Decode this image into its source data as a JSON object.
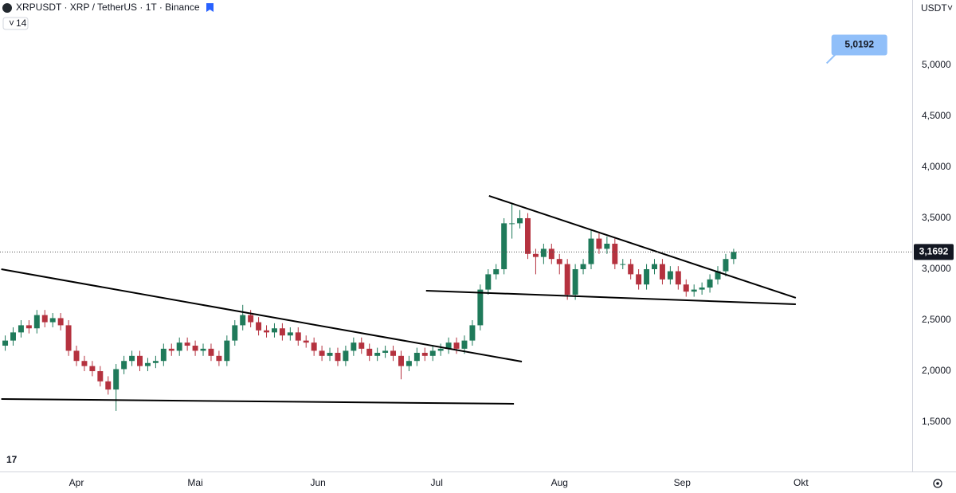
{
  "header": {
    "symbol": "XRPUSDT · XRP / TetherUS · 1T · Binance",
    "indicator": "14",
    "currency": "USDT"
  },
  "chart_data": {
    "type": "candlestick",
    "open": [
      2.25,
      2.3,
      2.38,
      2.45,
      2.42,
      2.55,
      2.48,
      2.52,
      2.45,
      2.2,
      2.1,
      2.05,
      2.0,
      1.9,
      1.82,
      2.02,
      2.1,
      2.15,
      2.05,
      2.08,
      2.1,
      2.22,
      2.2,
      2.28,
      2.25,
      2.2,
      2.22,
      2.15,
      2.1,
      2.3,
      2.45,
      2.55,
      2.48,
      2.4,
      2.38,
      2.42,
      2.35,
      2.38,
      2.3,
      2.28,
      2.2,
      2.15,
      2.18,
      2.1,
      2.2,
      2.28,
      2.22,
      2.15,
      2.18,
      2.2,
      2.15,
      2.05,
      2.1,
      2.18,
      2.15,
      2.2,
      2.22,
      2.28,
      2.22,
      2.3,
      2.45,
      2.8,
      2.95,
      3.0,
      3.45,
      3.45,
      3.5,
      3.15,
      3.12,
      3.2,
      3.1,
      3.05,
      2.75,
      3.0,
      3.05,
      3.3,
      3.2,
      3.25,
      3.05,
      3.05,
      2.95,
      2.85,
      3.0,
      3.05,
      2.9,
      2.98,
      2.85,
      2.78,
      2.8,
      2.82,
      2.9,
      2.98,
      3.1
    ],
    "high": [
      2.35,
      2.43,
      2.5,
      2.5,
      2.6,
      2.6,
      2.57,
      2.57,
      2.5,
      2.25,
      2.15,
      2.1,
      2.05,
      1.95,
      2.07,
      2.15,
      2.2,
      2.2,
      2.13,
      2.15,
      2.27,
      2.27,
      2.33,
      2.33,
      2.3,
      2.27,
      2.27,
      2.2,
      2.35,
      2.5,
      2.65,
      2.6,
      2.53,
      2.45,
      2.47,
      2.47,
      2.43,
      2.43,
      2.35,
      2.33,
      2.25,
      2.23,
      2.23,
      2.25,
      2.33,
      2.33,
      2.27,
      2.23,
      2.25,
      2.25,
      2.2,
      2.15,
      2.23,
      2.23,
      2.25,
      2.27,
      2.33,
      2.33,
      2.35,
      2.5,
      2.85,
      3.0,
      3.05,
      3.5,
      3.65,
      3.58,
      3.55,
      3.2,
      3.25,
      3.25,
      3.15,
      3.1,
      3.05,
      3.1,
      3.38,
      3.35,
      3.32,
      3.3,
      3.1,
      3.1,
      3.0,
      3.05,
      3.1,
      3.1,
      3.03,
      3.03,
      2.9,
      2.85,
      2.87,
      2.95,
      3.03,
      3.15,
      3.2
    ],
    "low": [
      2.2,
      2.25,
      2.33,
      2.37,
      2.37,
      2.43,
      2.43,
      2.4,
      2.15,
      2.05,
      2.0,
      1.95,
      1.85,
      1.77,
      1.61,
      1.97,
      2.05,
      2.0,
      2.0,
      2.03,
      2.05,
      2.15,
      2.15,
      2.2,
      2.15,
      2.15,
      2.1,
      2.05,
      2.05,
      2.25,
      2.4,
      2.43,
      2.35,
      2.33,
      2.33,
      2.3,
      2.3,
      2.25,
      2.23,
      2.15,
      2.1,
      2.1,
      2.05,
      2.05,
      2.15,
      2.17,
      2.1,
      2.1,
      2.13,
      2.1,
      1.92,
      2.0,
      2.05,
      2.1,
      2.1,
      2.15,
      2.17,
      2.17,
      2.17,
      2.25,
      2.4,
      2.75,
      2.9,
      2.95,
      3.3,
      3.4,
      3.1,
      2.95,
      3.05,
      3.05,
      2.95,
      2.7,
      2.7,
      2.95,
      3.0,
      3.15,
      3.15,
      3.0,
      3.0,
      2.9,
      2.8,
      2.8,
      2.95,
      2.85,
      2.85,
      2.8,
      2.73,
      2.73,
      2.75,
      2.77,
      2.85,
      2.93,
      3.05
    ],
    "close": [
      2.3,
      2.38,
      2.45,
      2.42,
      2.55,
      2.48,
      2.52,
      2.45,
      2.2,
      2.1,
      2.05,
      2.0,
      1.9,
      1.82,
      2.02,
      2.1,
      2.15,
      2.05,
      2.08,
      2.1,
      2.22,
      2.2,
      2.28,
      2.25,
      2.2,
      2.22,
      2.15,
      2.1,
      2.3,
      2.45,
      2.55,
      2.48,
      2.4,
      2.38,
      2.42,
      2.35,
      2.38,
      2.3,
      2.28,
      2.2,
      2.15,
      2.18,
      2.1,
      2.2,
      2.28,
      2.22,
      2.15,
      2.18,
      2.2,
      2.15,
      2.05,
      2.1,
      2.18,
      2.15,
      2.2,
      2.22,
      2.28,
      2.22,
      2.3,
      2.45,
      2.8,
      2.95,
      3.0,
      3.45,
      3.45,
      3.5,
      3.15,
      3.12,
      3.2,
      3.1,
      3.05,
      2.75,
      3.0,
      3.05,
      3.3,
      3.2,
      3.25,
      3.05,
      3.05,
      2.95,
      2.85,
      3.0,
      3.05,
      2.9,
      2.98,
      2.85,
      2.78,
      2.8,
      2.82,
      2.9,
      2.98,
      3.1,
      3.1692
    ],
    "up_color": "#1f7a5a",
    "down_color": "#b5323f",
    "xlim": [
      -0.66,
      114.55
    ],
    "xticks": [
      {
        "value": 9,
        "label": "Apr"
      },
      {
        "value": 24,
        "label": "Mai"
      },
      {
        "value": 39.5,
        "label": "Jun"
      },
      {
        "value": 54.5,
        "label": "Jul"
      },
      {
        "value": 70,
        "label": "Aug"
      },
      {
        "value": 85.5,
        "label": "Sep"
      },
      {
        "value": 100.5,
        "label": "Okt"
      }
    ],
    "ylim": [
      1.016,
      5.64
    ],
    "yticks": [
      {
        "value": 1.5,
        "label": "1,5000"
      },
      {
        "value": 2,
        "label": "2,0000"
      },
      {
        "value": 2.5,
        "label": "2,5000"
      },
      {
        "value": 3,
        "label": "3,0000"
      },
      {
        "value": 3.5,
        "label": "3,5000"
      },
      {
        "value": 4,
        "label": "4,0000"
      },
      {
        "value": 4.5,
        "label": "4,5000"
      },
      {
        "value": 5,
        "label": "5,0000"
      }
    ],
    "grid": false,
    "last_price": {
      "value": 3.1692,
      "label": "3,1692"
    },
    "lines": [
      {
        "x": [
          -0.5,
          65.25
        ],
        "y": [
          3.0,
          2.094
        ]
      },
      {
        "x": [
          -0.5,
          64.25
        ],
        "y": [
          1.727,
          1.68
        ]
      },
      {
        "x": [
          61.1,
          99.85
        ],
        "y": [
          3.719,
          2.719
        ]
      },
      {
        "x": [
          53.15,
          99.85
        ],
        "y": [
          2.789,
          2.656
        ]
      }
    ],
    "annotation": {
      "x": 103.75,
      "value": 5.0192,
      "label": "5,0192"
    }
  }
}
